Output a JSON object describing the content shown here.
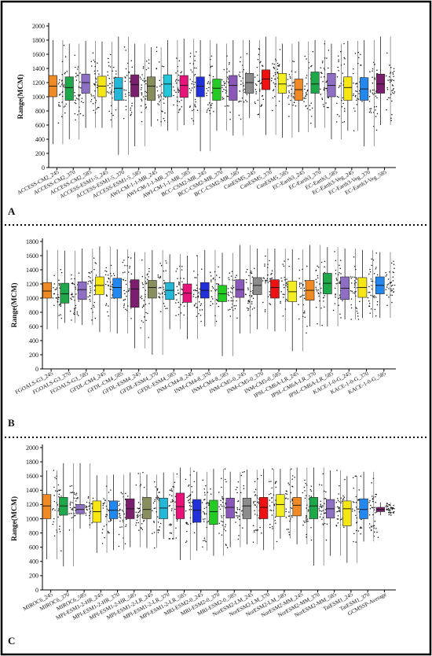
{
  "panel_labels": [
    "A",
    "B",
    "C"
  ],
  "chart_data": [
    {
      "type": "box",
      "panel": "A",
      "ylabel": "Range(MCM)",
      "ylim": [
        0,
        2000
      ],
      "yticks": [
        0,
        200,
        400,
        600,
        800,
        1000,
        1200,
        1400,
        1600,
        1800,
        2000
      ],
      "grid": false,
      "categories": [
        "ACCESS-CM2_245",
        "ACCESS-CM2_370",
        "ACCESS-CM2_585",
        "ACCESS-ESM1-5_245",
        "ACCESS-ESM1-5_370",
        "ACCESS-ESM1-5_585",
        "AWI-CM-1-1-MR_245",
        "AWI-CM-1-1-MR_370",
        "AWI-CM-1-1-MR_585",
        "BCC-CSM2-MR_245",
        "BCC-CSM2-MR_370",
        "BCC-CSM2-MR_585",
        "CanESM5_245",
        "CanESM5_370",
        "CanESM5_585",
        "EC-Earth3_245",
        "EC-Earth3_370",
        "EC-Earth3_585",
        "EC-Earth3-Veg_245",
        "EC-Earth3-Veg_370",
        "EC-Earth3-Veg_585"
      ],
      "colors": [
        "#f08a24",
        "#1fa84a",
        "#8f6fc4",
        "#f5e614",
        "#24b8d8",
        "#7c1e6e",
        "#8a8d5e",
        "#26c6da",
        "#e8137a",
        "#2230d8",
        "#22cc22",
        "#8a58b8",
        "#8c8c8c",
        "#ee1111",
        "#f2ee22",
        "#f08a24",
        "#1fa84a",
        "#8f6fc4",
        "#f5e614",
        "#2288f0",
        "#7c1e6e"
      ],
      "min": [
        330,
        400,
        560,
        560,
        180,
        300,
        580,
        520,
        600,
        230,
        520,
        450,
        700,
        460,
        420,
        500,
        560,
        400,
        520,
        300,
        600
      ],
      "q1": [
        1000,
        950,
        1050,
        1000,
        950,
        1000,
        950,
        1000,
        990,
        1000,
        950,
        950,
        1050,
        1100,
        1050,
        950,
        1050,
        1000,
        950,
        950,
        1050
      ],
      "median": [
        1150,
        1130,
        1200,
        1150,
        1120,
        1170,
        1150,
        1180,
        1160,
        1150,
        1120,
        1160,
        1200,
        1250,
        1180,
        1100,
        1180,
        1160,
        1130,
        1110,
        1180
      ],
      "q3": [
        1300,
        1280,
        1320,
        1290,
        1270,
        1310,
        1280,
        1310,
        1300,
        1280,
        1250,
        1300,
        1330,
        1380,
        1330,
        1250,
        1350,
        1330,
        1280,
        1270,
        1320
      ],
      "max": [
        1800,
        1750,
        1790,
        1780,
        1850,
        1750,
        1700,
        1800,
        1820,
        1800,
        1750,
        1800,
        1800,
        1850,
        1750,
        1780,
        1800,
        1750,
        1790,
        1800,
        1850
      ]
    },
    {
      "type": "box",
      "panel": "B",
      "ylabel": "Range(MCM)",
      "ylim": [
        0,
        1800
      ],
      "yticks": [
        0,
        200,
        400,
        600,
        800,
        1000,
        1200,
        1400,
        1600,
        1800
      ],
      "grid": false,
      "categories": [
        "FGOALS-G3_245",
        "FGOALS-G3_370",
        "FGOALS-G3_585",
        "GFDL-CM4_245",
        "GFDL-CM4_585",
        "GFDL-ESM4_245",
        "GFDL-ESM4_370",
        "GFDL-ESM4_585",
        "INM-CM4-8_245",
        "INM-CM4-8_370",
        "INM-CM4-8_585",
        "INM-CM5-0_245",
        "INM-CM5-0_370",
        "INM-CM5-0_585",
        "IPSL-CM6A-LR_245",
        "IPSL-CM6A-LR_370",
        "IPSL-CM6A-LR_585",
        "KACE-1-0-G_245",
        "KACE-1-0-G_370",
        "KACE-1-0-G_585"
      ],
      "colors": [
        "#f08a24",
        "#1fa84a",
        "#8f6fc4",
        "#f5e614",
        "#2288f0",
        "#7c1e6e",
        "#8a8d5e",
        "#24b8d8",
        "#e8137a",
        "#2230d8",
        "#22cc22",
        "#8a58b8",
        "#8c8c8c",
        "#ee1111",
        "#f2ee22",
        "#f08a24",
        "#1fa84a",
        "#8f6fc4",
        "#f5e614",
        "#2288f0"
      ],
      "min": [
        560,
        650,
        620,
        520,
        500,
        290,
        200,
        560,
        420,
        600,
        180,
        500,
        560,
        530,
        250,
        600,
        600,
        700,
        720,
        720
      ],
      "q1": [
        1000,
        930,
        980,
        1050,
        1000,
        870,
        1000,
        980,
        940,
        1000,
        950,
        1010,
        1050,
        1000,
        950,
        970,
        1060,
        980,
        1010,
        1060
      ],
      "median": [
        1100,
        1060,
        1120,
        1180,
        1150,
        1130,
        1150,
        1110,
        1070,
        1110,
        1060,
        1120,
        1180,
        1150,
        1090,
        1110,
        1210,
        1140,
        1150,
        1180
      ],
      "q3": [
        1220,
        1210,
        1230,
        1300,
        1280,
        1260,
        1250,
        1220,
        1200,
        1220,
        1180,
        1260,
        1290,
        1260,
        1240,
        1250,
        1350,
        1300,
        1290,
        1300
      ],
      "max": [
        1680,
        1670,
        1700,
        1730,
        1690,
        1650,
        1680,
        1620,
        1600,
        1680,
        1640,
        1750,
        1700,
        1700,
        1690,
        1750,
        1720,
        1700,
        1680,
        1650
      ]
    },
    {
      "type": "box",
      "panel": "C",
      "ylabel": "Range(MCM)",
      "ylim": [
        0,
        2000
      ],
      "yticks": [
        0,
        200,
        400,
        600,
        800,
        1000,
        1200,
        1400,
        1600,
        1800,
        2000
      ],
      "grid": false,
      "categories": [
        "MIROC6_245",
        "MIROC6_370",
        "MIROC6_585",
        "MPI-ESM1-2-HR_245",
        "MPI-ESM1-2-HR_370",
        "MPI-ESM1-2-HR_585",
        "MPI-ESM1-2-LR_245",
        "MPI-ESM1-2-LR_370",
        "MPI-ESM1-2-LR_585",
        "MRI-ESM2-0_245",
        "MRI-ESM2-0_370",
        "MRI-ESM2-0_585",
        "NorESM2-LM_245",
        "NorESM2-LM_370",
        "NorESM2-LM_585",
        "NorESM2-MM_245",
        "NorESM2-MM_370",
        "NorESM2-MM_585",
        "TaiESM1_245",
        "TaiESM1_370",
        "GCMSSP-Average"
      ],
      "colors": [
        "#f08a24",
        "#1fa84a",
        "#8f6fc4",
        "#f5e614",
        "#2288f0",
        "#7c1e6e",
        "#8a8d5e",
        "#24b8d8",
        "#e8137a",
        "#2230d8",
        "#22cc22",
        "#8a58b8",
        "#8c8c8c",
        "#ee1111",
        "#f2ee22",
        "#f08a24",
        "#1fa84a",
        "#8f6fc4",
        "#f5e614",
        "#2288f0",
        "#7c1e6e"
      ],
      "min": [
        430,
        330,
        860,
        520,
        560,
        600,
        590,
        720,
        420,
        550,
        480,
        600,
        640,
        560,
        720,
        640,
        340,
        480,
        380,
        680,
        1050
      ],
      "q1": [
        1000,
        1050,
        1070,
        950,
        1000,
        1000,
        1000,
        1000,
        1000,
        950,
        920,
        1010,
        1000,
        1000,
        1030,
        1040,
        1000,
        1010,
        900,
        1000,
        1100
      ],
      "median": [
        1180,
        1180,
        1130,
        1100,
        1120,
        1140,
        1130,
        1150,
        1170,
        1120,
        1100,
        1160,
        1180,
        1160,
        1200,
        1190,
        1180,
        1140,
        1140,
        1130,
        1130
      ],
      "q3": [
        1340,
        1300,
        1200,
        1250,
        1250,
        1280,
        1300,
        1290,
        1360,
        1270,
        1260,
        1290,
        1290,
        1300,
        1340,
        1300,
        1300,
        1270,
        1250,
        1280,
        1160
      ],
      "max": [
        1680,
        1780,
        1780,
        1610,
        1620,
        1650,
        1620,
        1650,
        1720,
        1660,
        1700,
        1660,
        1690,
        1700,
        1700,
        1720,
        1720,
        1680,
        1600,
        1660,
        1230
      ]
    }
  ]
}
